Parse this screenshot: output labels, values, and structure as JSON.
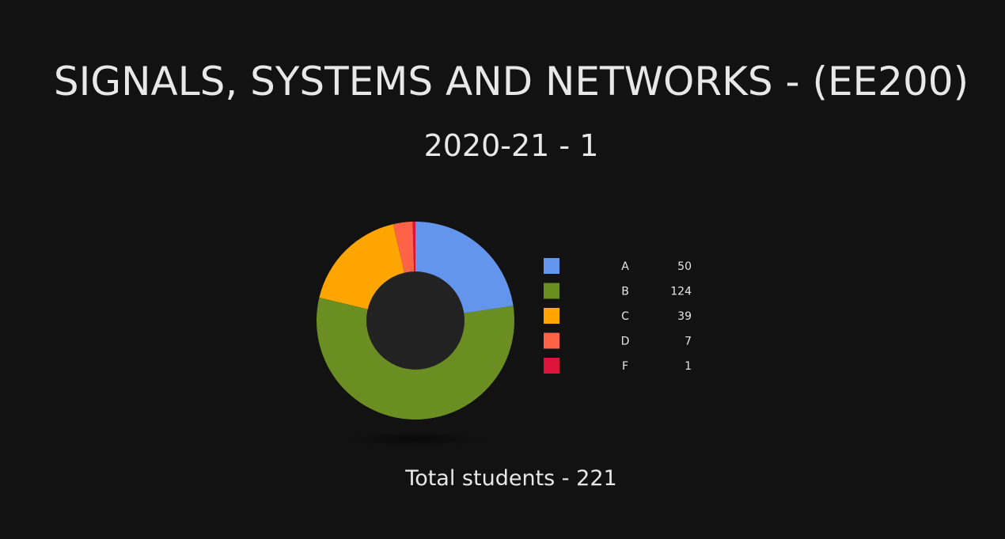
{
  "page": {
    "title": "SIGNALS, SYSTEMS AND NETWORKS - (EE200)",
    "subtitle": "2020-21 - 1",
    "total_label": "Total students - ",
    "total_value": "221"
  },
  "colors": {
    "background": "#121212",
    "donut_hole": "#222222",
    "text": "#e6e6e6"
  },
  "chart_data": {
    "type": "pie",
    "donut": true,
    "title": "",
    "legend_position": "right",
    "categories": [
      "A",
      "B",
      "C",
      "D",
      "F"
    ],
    "values": [
      50,
      124,
      39,
      7,
      1
    ],
    "colors": [
      "#6495ED",
      "#6B8E23",
      "#FFA500",
      "#FF6347",
      "#DC143C"
    ]
  }
}
